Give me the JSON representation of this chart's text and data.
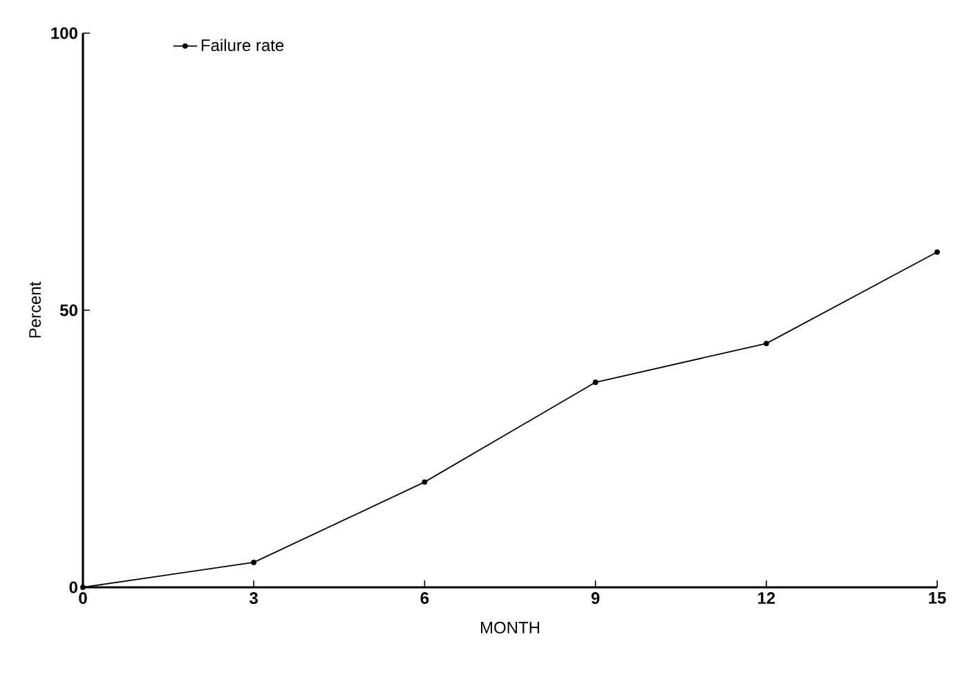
{
  "chart_data": {
    "type": "line",
    "xlabel": "MONTH",
    "ylabel": "Percent",
    "x": [
      0,
      3,
      6,
      9,
      12,
      15
    ],
    "series": [
      {
        "name": "Failure rate",
        "color": "#000000",
        "values": [
          0,
          4.5,
          19,
          37,
          44,
          60.5
        ]
      }
    ],
    "xlim": [
      0,
      15
    ],
    "xticks": [
      0,
      3,
      6,
      9,
      12,
      15
    ],
    "ylim": [
      0,
      100
    ],
    "yticks": [
      0,
      50,
      100
    ],
    "marker": "circle",
    "line_style": "solid",
    "legend": "top left",
    "grid": false
  }
}
